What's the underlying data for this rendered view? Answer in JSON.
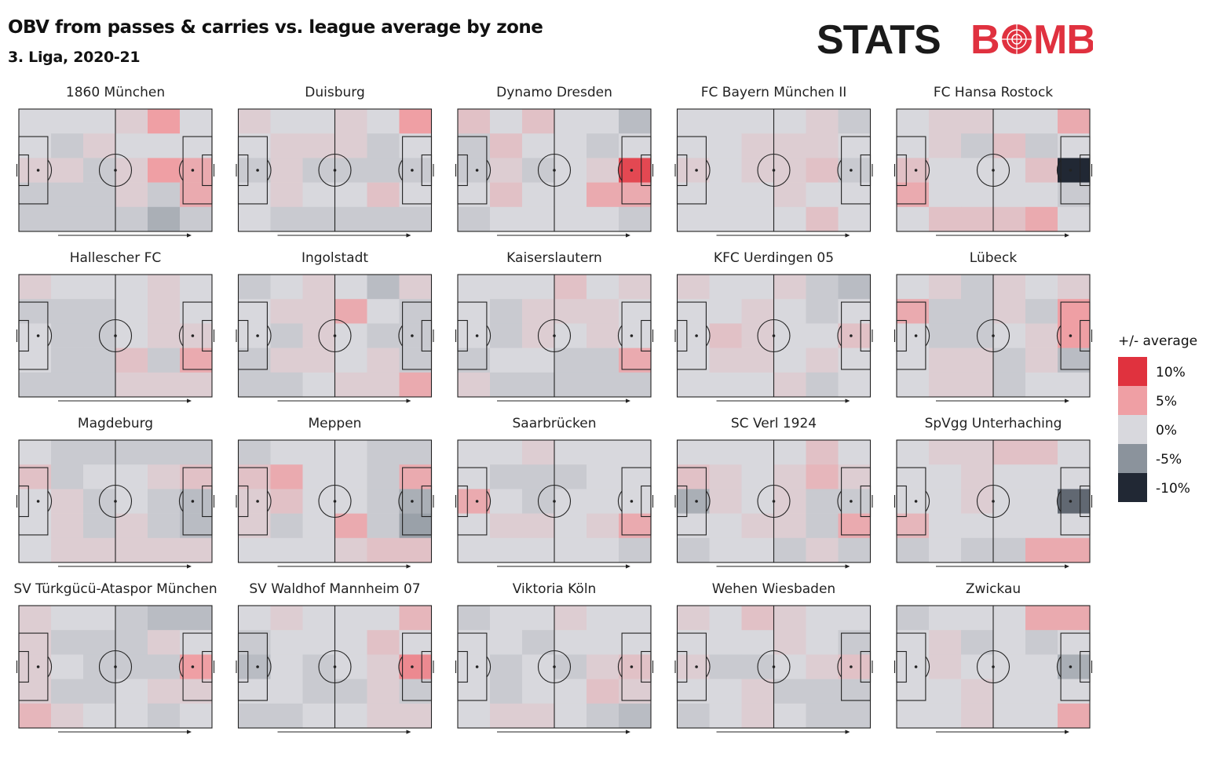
{
  "header": {
    "title": "OBV from passes & carries vs. league average by zone",
    "subtitle": "3. Liga, 2020-21",
    "logo_text_1": "STATS",
    "logo_text_2a": "B",
    "logo_text_2b": "MB"
  },
  "colors": {
    "logo_dark": "#1a1a1a",
    "logo_red": "#e0313f",
    "pitch_line": "#222222",
    "pos10": "#e0323e",
    "pos5": "#ef9fa4",
    "zero": "#d8d8dd",
    "neg5": "#8b939c",
    "neg10": "#212834"
  },
  "legend": {
    "title": "+/- average",
    "items": [
      {
        "label": "10%",
        "value": 10,
        "color": "#e0323e"
      },
      {
        "label": "5%",
        "value": 5,
        "color": "#ef9fa4"
      },
      {
        "label": "0%",
        "value": 0,
        "color": "#d8d8dd"
      },
      {
        "label": "-5%",
        "value": -5,
        "color": "#8b939c"
      },
      {
        "label": "-10%",
        "value": -10,
        "color": "#212834"
      }
    ]
  },
  "chart_data": {
    "type": "heatmap",
    "title": "OBV from passes & carries vs. league average by zone",
    "subtitle": "3. Liga, 2020-21",
    "value_unit": "% vs. league average",
    "color_scale": [
      -10,
      -5,
      0,
      5,
      10
    ],
    "grid": "5 lanes (top to bottom) x 6 columns (left to right, attacking direction left to right)",
    "teams": [
      {
        "name": "1860 München",
        "zones": [
          [
            0,
            0,
            0,
            1,
            5,
            0
          ],
          [
            0,
            -1,
            1,
            0,
            0,
            0
          ],
          [
            1,
            1,
            -1,
            1,
            5,
            4
          ],
          [
            -1,
            -1,
            -1,
            1,
            -1,
            4
          ],
          [
            -1,
            -1,
            -1,
            -1,
            -3,
            -1
          ]
        ]
      },
      {
        "name": "Duisburg",
        "zones": [
          [
            1,
            0,
            0,
            1,
            0,
            5
          ],
          [
            0,
            1,
            1,
            1,
            -1,
            0
          ],
          [
            -1,
            1,
            -1,
            -1,
            -1,
            -1
          ],
          [
            0,
            1,
            0,
            0,
            2,
            0
          ],
          [
            0,
            -1,
            -1,
            -1,
            -1,
            -1
          ]
        ]
      },
      {
        "name": "Dynamo Dresden",
        "zones": [
          [
            2,
            0,
            2,
            0,
            0,
            -2
          ],
          [
            -1,
            2,
            0,
            0,
            -1,
            0
          ],
          [
            -1,
            1,
            -1,
            0,
            1,
            9
          ],
          [
            0,
            2,
            0,
            0,
            4,
            4
          ],
          [
            -1,
            0,
            0,
            0,
            0,
            -1
          ]
        ]
      },
      {
        "name": "FC Bayern München II",
        "zones": [
          [
            0,
            0,
            0,
            0,
            1,
            -1
          ],
          [
            0,
            0,
            1,
            1,
            1,
            0
          ],
          [
            1,
            0,
            1,
            1,
            2,
            -1
          ],
          [
            0,
            0,
            0,
            1,
            0,
            0
          ],
          [
            0,
            0,
            0,
            0,
            2,
            0
          ]
        ]
      },
      {
        "name": "FC Hansa Rostock",
        "zones": [
          [
            0,
            1,
            1,
            0,
            0,
            4
          ],
          [
            0,
            1,
            -1,
            2,
            -1,
            0
          ],
          [
            2,
            0,
            0,
            0,
            2,
            -10
          ],
          [
            4,
            0,
            0,
            0,
            0,
            -1
          ],
          [
            0,
            2,
            2,
            2,
            4,
            0
          ]
        ]
      },
      {
        "name": "Hallescher FC",
        "zones": [
          [
            1,
            0,
            0,
            0,
            1,
            0
          ],
          [
            -1,
            -1,
            -1,
            0,
            1,
            0
          ],
          [
            0,
            -1,
            -1,
            0,
            1,
            1
          ],
          [
            0,
            -1,
            -1,
            2,
            -1,
            4
          ],
          [
            -1,
            -1,
            -1,
            1,
            1,
            1
          ]
        ]
      },
      {
        "name": "Ingolstadt",
        "zones": [
          [
            -1,
            0,
            1,
            0,
            -2,
            1
          ],
          [
            0,
            1,
            1,
            4,
            0,
            -1
          ],
          [
            0,
            -1,
            1,
            0,
            -1,
            -1
          ],
          [
            -1,
            1,
            1,
            0,
            1,
            -1
          ],
          [
            -1,
            -1,
            0,
            1,
            1,
            4
          ]
        ]
      },
      {
        "name": "Kaiserslautern",
        "zones": [
          [
            0,
            0,
            0,
            2,
            0,
            1
          ],
          [
            0,
            -1,
            1,
            1,
            1,
            0
          ],
          [
            0,
            -1,
            1,
            0,
            1,
            0
          ],
          [
            -1,
            0,
            0,
            -1,
            -1,
            4
          ],
          [
            1,
            -1,
            -1,
            -1,
            -1,
            -1
          ]
        ]
      },
      {
        "name": "KFC Uerdingen 05",
        "zones": [
          [
            1,
            0,
            0,
            1,
            -1,
            -2
          ],
          [
            0,
            0,
            1,
            0,
            -1,
            0
          ],
          [
            0,
            2,
            1,
            0,
            0,
            2
          ],
          [
            0,
            1,
            1,
            0,
            1,
            0
          ],
          [
            0,
            0,
            0,
            1,
            -1,
            0
          ]
        ]
      },
      {
        "name": "Lübeck",
        "zones": [
          [
            0,
            1,
            -1,
            1,
            0,
            1
          ],
          [
            4,
            -1,
            -1,
            1,
            -1,
            5
          ],
          [
            0,
            -1,
            -1,
            0,
            1,
            5
          ],
          [
            0,
            1,
            1,
            -1,
            1,
            -2
          ],
          [
            0,
            1,
            1,
            -1,
            0,
            0
          ]
        ]
      },
      {
        "name": "Magdeburg",
        "zones": [
          [
            0,
            -1,
            -1,
            -1,
            -1,
            -1
          ],
          [
            2,
            -1,
            0,
            0,
            1,
            2
          ],
          [
            0,
            1,
            -1,
            0,
            -1,
            -2
          ],
          [
            0,
            1,
            -1,
            1,
            -1,
            -2
          ],
          [
            0,
            1,
            1,
            1,
            1,
            1
          ]
        ]
      },
      {
        "name": "Meppen",
        "zones": [
          [
            -1,
            0,
            0,
            0,
            -1,
            -1
          ],
          [
            2,
            4,
            0,
            0,
            -1,
            4
          ],
          [
            1,
            2,
            0,
            0,
            -1,
            -3
          ],
          [
            1,
            -1,
            0,
            4,
            -1,
            -4
          ],
          [
            0,
            0,
            0,
            1,
            2,
            2
          ]
        ]
      },
      {
        "name": "Saarbrücken",
        "zones": [
          [
            0,
            0,
            1,
            0,
            0,
            0
          ],
          [
            0,
            -1,
            -1,
            -1,
            0,
            0
          ],
          [
            4,
            0,
            -1,
            0,
            0,
            0
          ],
          [
            0,
            1,
            1,
            0,
            1,
            4
          ],
          [
            0,
            0,
            0,
            0,
            0,
            -1
          ]
        ]
      },
      {
        "name": "SC Verl 1924",
        "zones": [
          [
            0,
            0,
            0,
            0,
            2,
            0
          ],
          [
            2,
            1,
            0,
            1,
            3,
            1
          ],
          [
            -3,
            1,
            0,
            1,
            -1,
            -1
          ],
          [
            0,
            0,
            1,
            1,
            -1,
            4
          ],
          [
            -1,
            0,
            0,
            -1,
            1,
            -1
          ]
        ]
      },
      {
        "name": "SpVgg Unterhaching",
        "zones": [
          [
            0,
            1,
            1,
            2,
            2,
            0
          ],
          [
            0,
            0,
            1,
            0,
            0,
            0
          ],
          [
            0,
            0,
            1,
            0,
            0,
            -7
          ],
          [
            3,
            0,
            0,
            0,
            0,
            0
          ],
          [
            -1,
            0,
            -1,
            -1,
            4,
            4
          ]
        ]
      },
      {
        "name": "SV Türkgücü-Ataspor München",
        "zones": [
          [
            1,
            0,
            0,
            -1,
            -2,
            -2
          ],
          [
            1,
            -1,
            -1,
            -1,
            1,
            0
          ],
          [
            1,
            0,
            -1,
            -1,
            -1,
            5
          ],
          [
            1,
            -1,
            -1,
            0,
            1,
            1
          ],
          [
            3,
            1,
            0,
            0,
            -1,
            0
          ]
        ]
      },
      {
        "name": "SV Waldhof Mannheim 07",
        "zones": [
          [
            0,
            1,
            0,
            0,
            0,
            3
          ],
          [
            -1,
            0,
            0,
            0,
            2,
            0
          ],
          [
            -2,
            0,
            -1,
            0,
            1,
            6
          ],
          [
            0,
            0,
            -1,
            -1,
            1,
            -1
          ],
          [
            -1,
            -1,
            0,
            0,
            1,
            1
          ]
        ]
      },
      {
        "name": "Viktoria Köln",
        "zones": [
          [
            -1,
            0,
            0,
            1,
            0,
            0
          ],
          [
            0,
            0,
            -1,
            0,
            0,
            0
          ],
          [
            0,
            -1,
            0,
            -1,
            1,
            2
          ],
          [
            0,
            -1,
            0,
            0,
            2,
            1
          ],
          [
            0,
            1,
            1,
            0,
            -1,
            -2
          ]
        ]
      },
      {
        "name": "Wehen Wiesbaden",
        "zones": [
          [
            1,
            0,
            2,
            1,
            0,
            0
          ],
          [
            0,
            0,
            0,
            1,
            0,
            -1
          ],
          [
            1,
            -1,
            -1,
            0,
            1,
            2
          ],
          [
            0,
            0,
            1,
            -1,
            -1,
            -1
          ],
          [
            -1,
            0,
            1,
            0,
            -1,
            -1
          ]
        ]
      },
      {
        "name": "Zwickau",
        "zones": [
          [
            -1,
            0,
            0,
            0,
            4,
            4
          ],
          [
            0,
            1,
            -1,
            0,
            -1,
            0
          ],
          [
            0,
            1,
            0,
            0,
            0,
            -3
          ],
          [
            0,
            0,
            1,
            0,
            0,
            0
          ],
          [
            0,
            0,
            1,
            0,
            0,
            4
          ]
        ]
      }
    ]
  }
}
